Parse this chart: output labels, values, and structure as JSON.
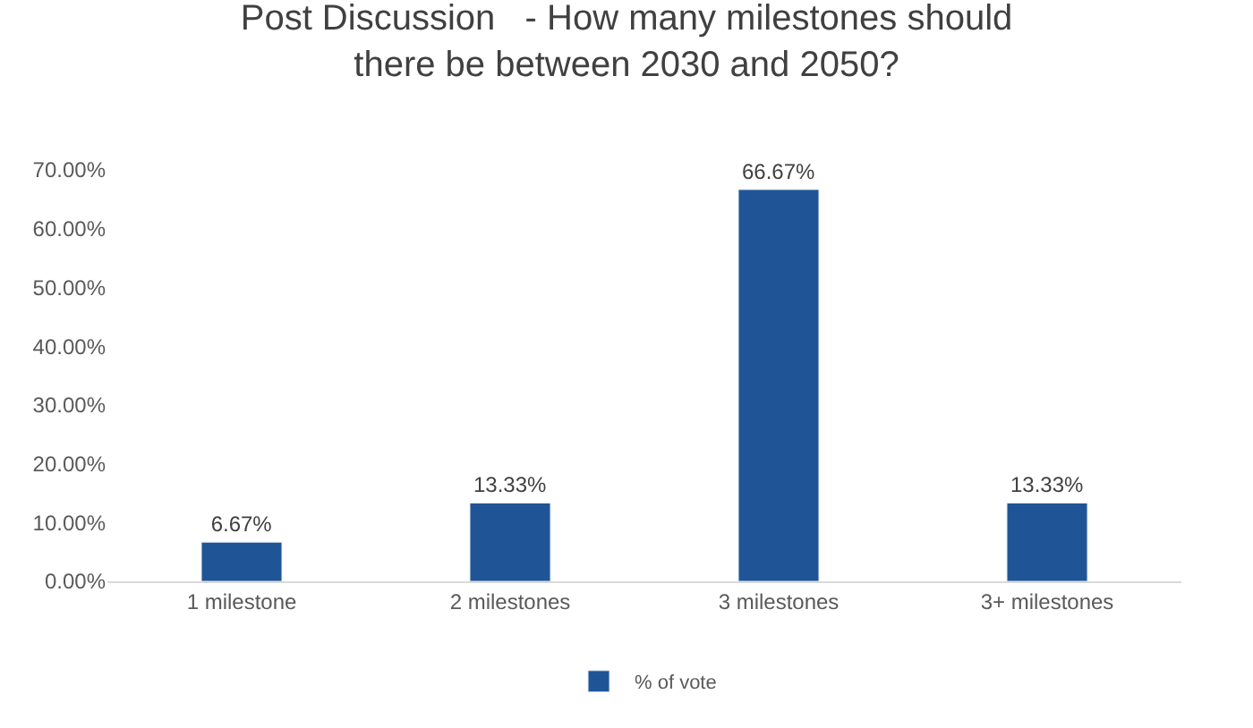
{
  "chart_data": {
    "type": "bar",
    "title": "Post Discussion   - How many milestones should\nthere be between 2030 and 2050?",
    "categories": [
      "1 milestone",
      "2 milestones",
      "3 milestones",
      "3+ milestones"
    ],
    "series": [
      {
        "name": "% of vote",
        "color": "#1f5596",
        "values": [
          6.67,
          13.33,
          66.67,
          13.33
        ],
        "value_labels": [
          "6.67%",
          "13.33%",
          "66.67%",
          "13.33%"
        ]
      }
    ],
    "ylim": [
      0,
      70
    ],
    "yticks": [
      {
        "value": 0,
        "label": "0.00%"
      },
      {
        "value": 10,
        "label": "10.00%"
      },
      {
        "value": 20,
        "label": "20.00%"
      },
      {
        "value": 30,
        "label": "30.00%"
      },
      {
        "value": 40,
        "label": "40.00%"
      },
      {
        "value": 50,
        "label": "50.00%"
      },
      {
        "value": 60,
        "label": "60.00%"
      },
      {
        "value": 70,
        "label": "70.00%"
      }
    ],
    "grid": false,
    "legend": "bottom"
  }
}
